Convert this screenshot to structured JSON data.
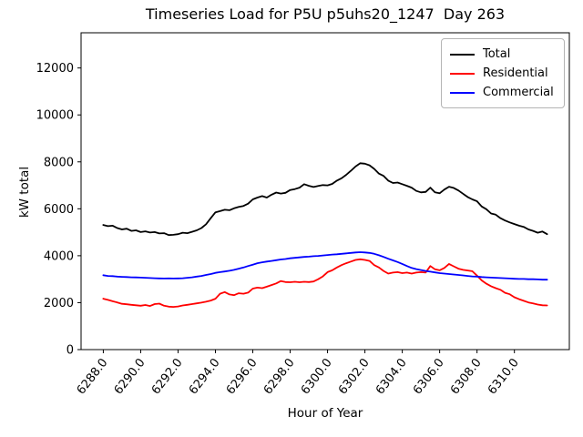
{
  "title": "Timeseries Load for P5U p5uhs20_1247  Day 263",
  "chart_data": {
    "type": "line",
    "title": "Timeseries Load for P5U p5uhs20_1247  Day 263",
    "xlabel": "Hour of Year",
    "ylabel": "kW total",
    "grid": false,
    "legend_position": "upper right",
    "xlim": [
      6286.81,
      6312.94
    ],
    "ylim": [
      0,
      13500
    ],
    "xticks": [
      6288,
      6290,
      6292,
      6294,
      6296,
      6298,
      6300,
      6302,
      6304,
      6306,
      6308,
      6310
    ],
    "xtick_labels": [
      "6288.0",
      "6290.0",
      "6292.0",
      "6294.0",
      "6296.0",
      "6298.0",
      "6300.0",
      "6302.0",
      "6304.0",
      "6306.0",
      "6308.0",
      "6310.0"
    ],
    "yticks": [
      0,
      2000,
      4000,
      6000,
      8000,
      10000,
      12000
    ],
    "ytick_labels": [
      "0",
      "2000",
      "4000",
      "6000",
      "8000",
      "10000",
      "12000"
    ],
    "x": [
      6288.0,
      6288.25,
      6288.5,
      6288.75,
      6289.0,
      6289.25,
      6289.5,
      6289.75,
      6290.0,
      6290.25,
      6290.5,
      6290.75,
      6291.0,
      6291.25,
      6291.5,
      6291.75,
      6292.0,
      6292.25,
      6292.5,
      6292.75,
      6293.0,
      6293.25,
      6293.5,
      6293.75,
      6294.0,
      6294.25,
      6294.5,
      6294.75,
      6295.0,
      6295.25,
      6295.5,
      6295.75,
      6296.0,
      6296.25,
      6296.5,
      6296.75,
      6297.0,
      6297.25,
      6297.5,
      6297.75,
      6298.0,
      6298.25,
      6298.5,
      6298.75,
      6299.0,
      6299.25,
      6299.5,
      6299.75,
      6300.0,
      6300.25,
      6300.5,
      6300.75,
      6301.0,
      6301.25,
      6301.5,
      6301.75,
      6302.0,
      6302.25,
      6302.5,
      6302.75,
      6303.0,
      6303.25,
      6303.5,
      6303.75,
      6304.0,
      6304.25,
      6304.5,
      6304.75,
      6305.0,
      6305.25,
      6305.5,
      6305.75,
      6306.0,
      6306.25,
      6306.5,
      6306.75,
      6307.0,
      6307.25,
      6307.5,
      6307.75,
      6308.0,
      6308.25,
      6308.5,
      6308.75,
      6309.0,
      6309.25,
      6309.5,
      6309.75,
      6310.0,
      6310.25,
      6310.5,
      6310.75,
      6311.0,
      6311.25,
      6311.5,
      6311.75
    ],
    "series": [
      {
        "name": "Total",
        "color": "#000000",
        "values": [
          5310,
          5260,
          5280,
          5180,
          5120,
          5150,
          5060,
          5080,
          5010,
          5040,
          4990,
          5010,
          4950,
          4960,
          4880,
          4890,
          4920,
          4980,
          4960,
          5020,
          5080,
          5180,
          5340,
          5600,
          5850,
          5900,
          5960,
          5940,
          6020,
          6080,
          6120,
          6220,
          6400,
          6480,
          6540,
          6480,
          6600,
          6690,
          6650,
          6680,
          6800,
          6840,
          6900,
          7050,
          6980,
          6930,
          6970,
          7010,
          7000,
          7060,
          7200,
          7300,
          7450,
          7620,
          7800,
          7940,
          7920,
          7850,
          7700,
          7500,
          7400,
          7200,
          7100,
          7120,
          7050,
          6980,
          6900,
          6760,
          6700,
          6720,
          6900,
          6700,
          6660,
          6820,
          6940,
          6890,
          6780,
          6640,
          6500,
          6400,
          6320,
          6100,
          5980,
          5800,
          5750,
          5600,
          5500,
          5420,
          5350,
          5280,
          5230,
          5120,
          5060,
          4980,
          5030,
          4920
        ]
      },
      {
        "name": "Residential",
        "color": "#ff0000",
        "values": [
          2170,
          2120,
          2060,
          2010,
          1950,
          1930,
          1910,
          1890,
          1870,
          1900,
          1860,
          1940,
          1960,
          1870,
          1830,
          1820,
          1840,
          1880,
          1910,
          1940,
          1970,
          2000,
          2040,
          2090,
          2170,
          2380,
          2450,
          2350,
          2320,
          2400,
          2380,
          2430,
          2600,
          2640,
          2620,
          2680,
          2750,
          2820,
          2920,
          2880,
          2870,
          2890,
          2870,
          2890,
          2880,
          2900,
          3000,
          3120,
          3300,
          3380,
          3500,
          3600,
          3680,
          3750,
          3820,
          3850,
          3820,
          3780,
          3600,
          3500,
          3350,
          3240,
          3280,
          3300,
          3260,
          3280,
          3240,
          3280,
          3300,
          3280,
          3560,
          3420,
          3380,
          3480,
          3650,
          3550,
          3450,
          3400,
          3370,
          3340,
          3150,
          2950,
          2810,
          2700,
          2620,
          2550,
          2420,
          2360,
          2230,
          2150,
          2080,
          2010,
          1970,
          1920,
          1890,
          1880
        ]
      },
      {
        "name": "Commercial",
        "color": "#0000ff",
        "values": [
          3170,
          3140,
          3130,
          3110,
          3100,
          3090,
          3080,
          3075,
          3070,
          3060,
          3050,
          3040,
          3035,
          3030,
          3035,
          3030,
          3035,
          3040,
          3060,
          3080,
          3110,
          3140,
          3180,
          3220,
          3270,
          3300,
          3330,
          3360,
          3400,
          3450,
          3500,
          3560,
          3620,
          3680,
          3720,
          3750,
          3780,
          3810,
          3840,
          3860,
          3890,
          3910,
          3930,
          3950,
          3960,
          3980,
          3990,
          4010,
          4030,
          4050,
          4060,
          4080,
          4100,
          4120,
          4140,
          4150,
          4140,
          4120,
          4080,
          4020,
          3950,
          3870,
          3800,
          3730,
          3650,
          3560,
          3480,
          3430,
          3390,
          3350,
          3320,
          3290,
          3260,
          3240,
          3220,
          3200,
          3180,
          3160,
          3140,
          3120,
          3110,
          3090,
          3080,
          3070,
          3060,
          3050,
          3040,
          3030,
          3020,
          3010,
          3010,
          3000,
          3000,
          2990,
          2980,
          2980
        ]
      }
    ],
    "legend": [
      {
        "label": "Total",
        "color": "#000000"
      },
      {
        "label": "Residential",
        "color": "#ff0000"
      },
      {
        "label": "Commercial",
        "color": "#0000ff"
      }
    ]
  }
}
